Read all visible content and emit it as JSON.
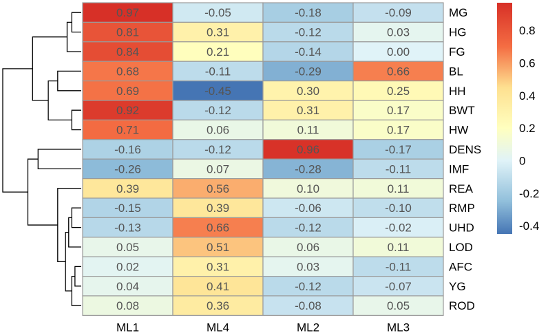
{
  "chart_data": {
    "type": "heatmap",
    "title": "",
    "xlabel": "",
    "ylabel": "",
    "columns": [
      "ML1",
      "ML4",
      "ML2",
      "ML3"
    ],
    "rows": [
      "MG",
      "HG",
      "FG",
      "BL",
      "HH",
      "BWT",
      "HW",
      "DENS",
      "IMF",
      "REA",
      "RMP",
      "UHD",
      "LOD",
      "AFC",
      "YG",
      "ROD"
    ],
    "values": [
      [
        0.97,
        -0.05,
        -0.18,
        -0.09
      ],
      [
        0.81,
        0.31,
        -0.12,
        0.03
      ],
      [
        0.84,
        0.21,
        -0.14,
        0.0
      ],
      [
        0.68,
        -0.11,
        -0.29,
        0.66
      ],
      [
        0.69,
        -0.45,
        0.3,
        0.25
      ],
      [
        0.92,
        -0.12,
        0.31,
        0.17
      ],
      [
        0.71,
        0.06,
        0.11,
        0.17
      ],
      [
        -0.16,
        -0.12,
        0.96,
        -0.17
      ],
      [
        -0.26,
        0.07,
        -0.28,
        -0.11
      ],
      [
        0.39,
        0.56,
        0.1,
        0.11
      ],
      [
        -0.15,
        0.39,
        -0.06,
        -0.1
      ],
      [
        -0.13,
        0.66,
        -0.12,
        -0.02
      ],
      [
        0.05,
        0.51,
        0.06,
        0.11
      ],
      [
        0.02,
        0.31,
        0.03,
        -0.11
      ],
      [
        0.04,
        0.41,
        -0.12,
        -0.07
      ],
      [
        0.08,
        0.36,
        -0.08,
        0.05
      ]
    ],
    "cell_labels": [
      [
        "0.97",
        "-0.05",
        "-0.18",
        "-0.09"
      ],
      [
        "0.81",
        "0.31",
        "-0.12",
        "0.03"
      ],
      [
        "0.84",
        "0.21",
        "-0.14",
        "0.00"
      ],
      [
        "0.68",
        "-0.11",
        "-0.29",
        "0.66"
      ],
      [
        "0.69",
        "-0.45",
        "0.30",
        "0.25"
      ],
      [
        "0.92",
        "-0.12",
        "0.31",
        "0.17"
      ],
      [
        "0.71",
        "0.06",
        "0.11",
        "0.17"
      ],
      [
        "-0.16",
        "-0.12",
        "0.96",
        "-0.17"
      ],
      [
        "-0.26",
        "0.07",
        "-0.28",
        "-0.11"
      ],
      [
        "0.39",
        "0.56",
        "0.10",
        "0.11"
      ],
      [
        "-0.15",
        "0.39",
        "-0.06",
        "-0.10"
      ],
      [
        "-0.13",
        "0.66",
        "-0.12",
        "-0.02"
      ],
      [
        "0.05",
        "0.51",
        "0.06",
        "0.11"
      ],
      [
        "0.02",
        "0.31",
        "0.03",
        "-0.11"
      ],
      [
        "0.04",
        "0.41",
        "-0.12",
        "-0.07"
      ],
      [
        "0.08",
        "0.36",
        "-0.08",
        "0.05"
      ]
    ],
    "color_scale": {
      "min": -0.45,
      "max": 0.97,
      "stops": [
        {
          "value": -0.45,
          "color": "#4575b4"
        },
        {
          "value": -0.25,
          "color": "#91bfdb"
        },
        {
          "value": 0.0,
          "color": "#e0f3f8"
        },
        {
          "value": 0.2,
          "color": "#ffffbf"
        },
        {
          "value": 0.45,
          "color": "#fee090"
        },
        {
          "value": 0.7,
          "color": "#f46d43"
        },
        {
          "value": 0.97,
          "color": "#d73027"
        }
      ]
    },
    "legend": {
      "placement": "right",
      "ticks": [
        -0.4,
        -0.2,
        0,
        0.2,
        0.4,
        0.6,
        0.8
      ],
      "tick_labels": [
        "-0.4",
        "-0.2",
        "0",
        "0.2",
        "0.4",
        "0.6",
        "0.8"
      ]
    },
    "dendrogram": {
      "side": "left",
      "merges": [
        [
          "MG",
          "HG",
          0.12
        ],
        [
          "m0",
          "FG",
          0.18
        ],
        [
          "BL",
          "HH",
          0.3
        ],
        [
          "BWT",
          "HW",
          0.12
        ],
        [
          "m2",
          "m3",
          0.42
        ],
        [
          "m1",
          "m4",
          0.62
        ],
        [
          "DENS",
          "IMF",
          0.55
        ],
        [
          "RMP",
          "UHD",
          0.12
        ],
        [
          "m7",
          "LOD",
          0.16
        ],
        [
          "AFC",
          "YG",
          0.08
        ],
        [
          "m9",
          "ROD",
          0.12
        ],
        [
          "m8",
          "m10",
          0.2
        ],
        [
          "REA",
          "m11",
          0.3
        ],
        [
          "m6",
          "m12",
          0.68
        ],
        [
          "m5",
          "m13",
          1.0
        ]
      ]
    }
  }
}
